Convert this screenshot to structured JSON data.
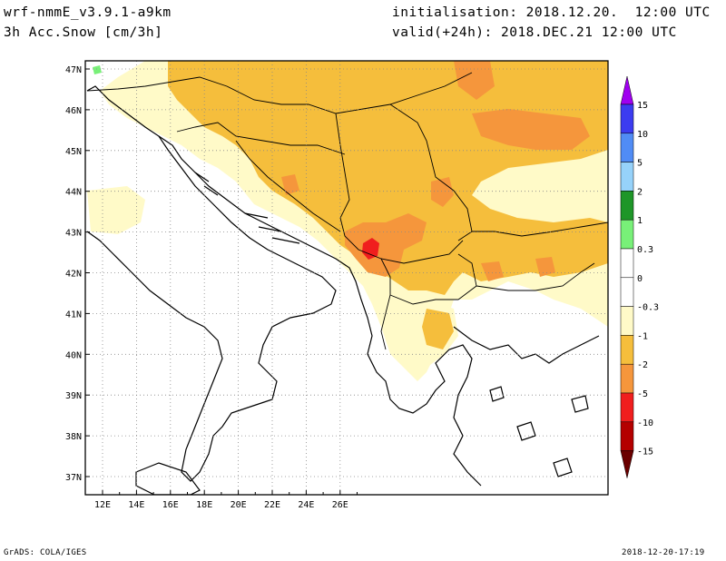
{
  "header": {
    "model": "wrf-nmmE_v3.9.1-a9km",
    "variable": "3h Acc.Snow [cm/3h]",
    "init": "initialisation: 2018.12.20.  12:00 UTC",
    "valid": "valid(+24h): 2018.DEC.21 12:00 UTC"
  },
  "footer": {
    "credit": "GrADS: COLA/IGES",
    "timestamp": "2018-12-20-17:19"
  },
  "axes": {
    "lon_labels": [
      "12E",
      "14E",
      "16E",
      "18E",
      "20E",
      "22E",
      "24E",
      "26E"
    ],
    "lat_labels": [
      "47N",
      "46N",
      "45N",
      "44N",
      "43N",
      "42N",
      "41N",
      "40N",
      "39N",
      "38N",
      "37N"
    ]
  },
  "legend": {
    "top_arrow_color": "#a000f0",
    "bottom_arrow_color": "#6a0000",
    "boxes": [
      {
        "color": "#3c3cf0",
        "label": "15"
      },
      {
        "color": "#508cf5",
        "label": "10"
      },
      {
        "color": "#96d2fa",
        "label": "5"
      },
      {
        "color": "#1e9628",
        "label": "2"
      },
      {
        "color": "#78f078",
        "label": "1"
      },
      {
        "color": "#ffffff",
        "label": "0.3"
      },
      {
        "color": "#ffffff",
        "label": "0"
      },
      {
        "color": "#fffac8",
        "label": "-0.3"
      },
      {
        "color": "#f5be3c",
        "label": "-1"
      },
      {
        "color": "#f5963c",
        "label": "-2"
      },
      {
        "color": "#f01e1e",
        "label": "-5"
      },
      {
        "color": "#b40000",
        "label": "-10"
      }
    ],
    "last_label": "-15"
  },
  "colors": {
    "light": "#fffac8",
    "yellow": "#f5be3c",
    "orange": "#f5963c",
    "red": "#f01e1e",
    "green": "#78f078"
  }
}
